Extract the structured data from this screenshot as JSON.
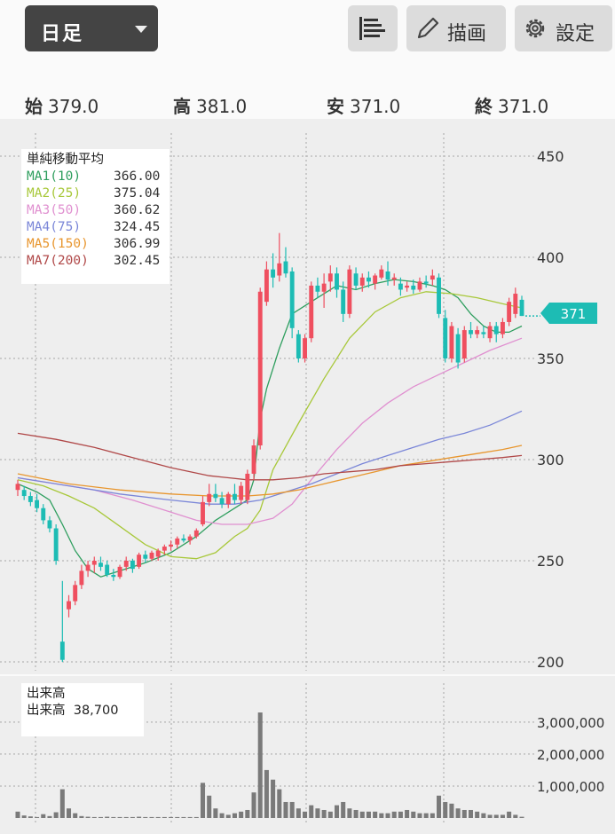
{
  "toolbar": {
    "period": "日足",
    "draw_label": "描画",
    "settings_label": "設定"
  },
  "ohlc": {
    "open_label": "始",
    "open": "379.0",
    "high_label": "高",
    "high": "381.0",
    "low_label": "安",
    "low": "371.0",
    "close_label": "終",
    "close": "371.0"
  },
  "legend": {
    "title": "単純移動平均",
    "items": [
      {
        "name": "MA1(10)",
        "value": "366.00",
        "color": "#2e9e5e"
      },
      {
        "name": "MA2(25)",
        "value": "375.04",
        "color": "#a8c83a"
      },
      {
        "name": "MA3(50)",
        "value": "360.62",
        "color": "#e090d0"
      },
      {
        "name": "MA4(75)",
        "value": "324.45",
        "color": "#7a86d8"
      },
      {
        "name": "MA5(150)",
        "value": "306.99",
        "color": "#e8962e"
      },
      {
        "name": "MA7(200)",
        "value": "302.45",
        "color": "#b04848"
      }
    ]
  },
  "volume_legend": {
    "title": "出来高",
    "label": "出来高",
    "value": "38,700"
  },
  "price_tag": "371",
  "colors": {
    "up": "#ef4f5f",
    "down": "#1dbcb4",
    "volume": "#7a7a7a"
  },
  "chart_data": {
    "type": "candlestick",
    "price_axis": {
      "ticks": [
        "450",
        "400",
        "350",
        "300",
        "250",
        "200"
      ],
      "ylim": [
        200,
        450
      ]
    },
    "volume_axis": {
      "ticks": [
        "3,000,000",
        "2,000,000",
        "1,000,000"
      ],
      "ylim": [
        0,
        3800000
      ]
    },
    "grid": true,
    "candles": [
      {
        "o": 285,
        "h": 290,
        "l": 282,
        "c": 288
      },
      {
        "o": 285,
        "h": 287,
        "l": 280,
        "c": 282
      },
      {
        "o": 282,
        "h": 284,
        "l": 277,
        "c": 279
      },
      {
        "o": 280,
        "h": 283,
        "l": 274,
        "c": 276
      },
      {
        "o": 276,
        "h": 278,
        "l": 268,
        "c": 270
      },
      {
        "o": 270,
        "h": 272,
        "l": 264,
        "c": 266
      },
      {
        "o": 266,
        "h": 268,
        "l": 248,
        "c": 250
      },
      {
        "o": 210,
        "h": 240,
        "l": 200,
        "c": 201
      },
      {
        "o": 226,
        "h": 233,
        "l": 222,
        "c": 230
      },
      {
        "o": 230,
        "h": 240,
        "l": 228,
        "c": 238
      },
      {
        "o": 238,
        "h": 248,
        "l": 236,
        "c": 245
      },
      {
        "o": 245,
        "h": 250,
        "l": 242,
        "c": 248
      },
      {
        "o": 248,
        "h": 252,
        "l": 244,
        "c": 250
      },
      {
        "o": 249,
        "h": 252,
        "l": 245,
        "c": 247
      },
      {
        "o": 248,
        "h": 250,
        "l": 242,
        "c": 243
      },
      {
        "o": 243,
        "h": 246,
        "l": 240,
        "c": 242
      },
      {
        "o": 242,
        "h": 248,
        "l": 241,
        "c": 247
      },
      {
        "o": 247,
        "h": 252,
        "l": 245,
        "c": 250
      },
      {
        "o": 250,
        "h": 251,
        "l": 244,
        "c": 246
      },
      {
        "o": 247,
        "h": 254,
        "l": 246,
        "c": 253
      },
      {
        "o": 253,
        "h": 255,
        "l": 249,
        "c": 251
      },
      {
        "o": 251,
        "h": 255,
        "l": 250,
        "c": 254
      },
      {
        "o": 252,
        "h": 256,
        "l": 250,
        "c": 255
      },
      {
        "o": 255,
        "h": 258,
        "l": 253,
        "c": 257
      },
      {
        "o": 257,
        "h": 260,
        "l": 255,
        "c": 258
      },
      {
        "o": 258,
        "h": 262,
        "l": 256,
        "c": 261
      },
      {
        "o": 261,
        "h": 263,
        "l": 259,
        "c": 260
      },
      {
        "o": 260,
        "h": 263,
        "l": 258,
        "c": 262
      },
      {
        "o": 262,
        "h": 266,
        "l": 261,
        "c": 265
      },
      {
        "o": 268,
        "h": 282,
        "l": 267,
        "c": 279
      },
      {
        "o": 279,
        "h": 288,
        "l": 277,
        "c": 283
      },
      {
        "o": 283,
        "h": 288,
        "l": 279,
        "c": 281
      },
      {
        "o": 281,
        "h": 284,
        "l": 276,
        "c": 278
      },
      {
        "o": 278,
        "h": 284,
        "l": 276,
        "c": 283
      },
      {
        "o": 283,
        "h": 288,
        "l": 278,
        "c": 280
      },
      {
        "o": 280,
        "h": 289,
        "l": 278,
        "c": 287
      },
      {
        "o": 280,
        "h": 295,
        "l": 278,
        "c": 293
      },
      {
        "o": 293,
        "h": 310,
        "l": 290,
        "c": 307
      },
      {
        "o": 307,
        "h": 385,
        "l": 305,
        "c": 383
      },
      {
        "o": 378,
        "h": 398,
        "l": 376,
        "c": 394
      },
      {
        "o": 394,
        "h": 402,
        "l": 385,
        "c": 390
      },
      {
        "o": 391,
        "h": 412,
        "l": 388,
        "c": 397
      },
      {
        "o": 398,
        "h": 405,
        "l": 390,
        "c": 392
      },
      {
        "o": 393,
        "h": 395,
        "l": 360,
        "c": 365
      },
      {
        "o": 362,
        "h": 364,
        "l": 348,
        "c": 350
      },
      {
        "o": 350,
        "h": 362,
        "l": 348,
        "c": 360
      },
      {
        "o": 360,
        "h": 388,
        "l": 358,
        "c": 386
      },
      {
        "o": 386,
        "h": 390,
        "l": 380,
        "c": 383
      },
      {
        "o": 383,
        "h": 392,
        "l": 375,
        "c": 387
      },
      {
        "o": 388,
        "h": 396,
        "l": 383,
        "c": 392
      },
      {
        "o": 392,
        "h": 395,
        "l": 380,
        "c": 384
      },
      {
        "o": 384,
        "h": 388,
        "l": 368,
        "c": 372
      },
      {
        "o": 372,
        "h": 396,
        "l": 370,
        "c": 394
      },
      {
        "o": 392,
        "h": 395,
        "l": 384,
        "c": 386
      },
      {
        "o": 386,
        "h": 392,
        "l": 383,
        "c": 390
      },
      {
        "o": 390,
        "h": 393,
        "l": 385,
        "c": 388
      },
      {
        "o": 387,
        "h": 392,
        "l": 384,
        "c": 391
      },
      {
        "o": 390,
        "h": 396,
        "l": 389,
        "c": 394
      },
      {
        "o": 393,
        "h": 398,
        "l": 386,
        "c": 389
      },
      {
        "o": 389,
        "h": 392,
        "l": 386,
        "c": 390
      },
      {
        "o": 387,
        "h": 390,
        "l": 381,
        "c": 384
      },
      {
        "o": 385,
        "h": 388,
        "l": 383,
        "c": 386
      },
      {
        "o": 386,
        "h": 389,
        "l": 382,
        "c": 384
      },
      {
        "o": 384,
        "h": 390,
        "l": 383,
        "c": 388
      },
      {
        "o": 388,
        "h": 391,
        "l": 385,
        "c": 387
      },
      {
        "o": 389,
        "h": 394,
        "l": 386,
        "c": 391
      },
      {
        "o": 390,
        "h": 392,
        "l": 370,
        "c": 372
      },
      {
        "o": 370,
        "h": 374,
        "l": 348,
        "c": 350
      },
      {
        "o": 350,
        "h": 368,
        "l": 348,
        "c": 366
      },
      {
        "o": 362,
        "h": 365,
        "l": 345,
        "c": 348
      },
      {
        "o": 350,
        "h": 366,
        "l": 348,
        "c": 364
      },
      {
        "o": 364,
        "h": 368,
        "l": 360,
        "c": 362
      },
      {
        "o": 362,
        "h": 366,
        "l": 360,
        "c": 364
      },
      {
        "o": 363,
        "h": 366,
        "l": 360,
        "c": 362
      },
      {
        "o": 360,
        "h": 368,
        "l": 358,
        "c": 366
      },
      {
        "o": 366,
        "h": 368,
        "l": 358,
        "c": 362
      },
      {
        "o": 362,
        "h": 370,
        "l": 360,
        "c": 368
      },
      {
        "o": 368,
        "h": 380,
        "l": 366,
        "c": 378
      },
      {
        "o": 372,
        "h": 385,
        "l": 370,
        "c": 382
      },
      {
        "o": 379,
        "h": 381,
        "l": 371,
        "c": 371
      }
    ],
    "volume": [
      200000,
      80000,
      50000,
      30000,
      120000,
      60000,
      180000,
      900000,
      300000,
      150000,
      60000,
      40000,
      30000,
      30000,
      40000,
      30000,
      30000,
      30000,
      30000,
      40000,
      30000,
      30000,
      30000,
      30000,
      30000,
      30000,
      30000,
      30000,
      30000,
      1100000,
      700000,
      300000,
      150000,
      100000,
      150000,
      200000,
      250000,
      800000,
      3300000,
      1500000,
      1200000,
      900000,
      500000,
      500000,
      300000,
      200000,
      400000,
      300000,
      250000,
      200000,
      400000,
      500000,
      300000,
      250000,
      200000,
      200000,
      200000,
      150000,
      150000,
      200000,
      200000,
      250000,
      200000,
      150000,
      150000,
      150000,
      700000,
      500000,
      450000,
      300000,
      250000,
      250000,
      200000,
      150000,
      100000,
      100000,
      100000,
      200000,
      100000,
      38700
    ],
    "moving_averages": [
      {
        "name": "MA1(10)",
        "points": [
          [
            0,
            288
          ],
          [
            3,
            284
          ],
          [
            5,
            280
          ],
          [
            7,
            268
          ],
          [
            9,
            255
          ],
          [
            11,
            246
          ],
          [
            13,
            242
          ],
          [
            16,
            245
          ],
          [
            20,
            249
          ],
          [
            24,
            254
          ],
          [
            28,
            262
          ],
          [
            31,
            270
          ],
          [
            34,
            276
          ],
          [
            36,
            280
          ],
          [
            37,
            290
          ],
          [
            38,
            320
          ],
          [
            39,
            335
          ],
          [
            41,
            355
          ],
          [
            43,
            372
          ],
          [
            45,
            376
          ],
          [
            47,
            380
          ],
          [
            50,
            386
          ],
          [
            53,
            384
          ],
          [
            56,
            387
          ],
          [
            59,
            389
          ],
          [
            62,
            388
          ],
          [
            65,
            386
          ],
          [
            67,
            384
          ],
          [
            69,
            380
          ],
          [
            71,
            372
          ],
          [
            73,
            366
          ],
          [
            75,
            363
          ],
          [
            77,
            363
          ],
          [
            79,
            366
          ]
        ]
      },
      {
        "name": "MA2(25)",
        "points": [
          [
            0,
            290
          ],
          [
            4,
            287
          ],
          [
            8,
            282
          ],
          [
            12,
            276
          ],
          [
            16,
            267
          ],
          [
            20,
            258
          ],
          [
            24,
            252
          ],
          [
            28,
            251
          ],
          [
            31,
            254
          ],
          [
            34,
            262
          ],
          [
            36,
            266
          ],
          [
            38,
            275
          ],
          [
            40,
            295
          ],
          [
            44,
            318
          ],
          [
            48,
            340
          ],
          [
            52,
            360
          ],
          [
            56,
            373
          ],
          [
            60,
            380
          ],
          [
            64,
            383
          ],
          [
            68,
            382
          ],
          [
            72,
            380
          ],
          [
            76,
            377
          ],
          [
            79,
            375
          ]
        ]
      },
      {
        "name": "MA3(50)",
        "points": [
          [
            0,
            291
          ],
          [
            6,
            288
          ],
          [
            12,
            285
          ],
          [
            18,
            280
          ],
          [
            24,
            274
          ],
          [
            28,
            270
          ],
          [
            32,
            268
          ],
          [
            36,
            268
          ],
          [
            40,
            271
          ],
          [
            43,
            278
          ],
          [
            46,
            290
          ],
          [
            50,
            305
          ],
          [
            54,
            318
          ],
          [
            58,
            328
          ],
          [
            62,
            336
          ],
          [
            66,
            342
          ],
          [
            70,
            348
          ],
          [
            74,
            354
          ],
          [
            79,
            360
          ]
        ]
      },
      {
        "name": "MA4(75)",
        "points": [
          [
            0,
            291
          ],
          [
            8,
            287
          ],
          [
            16,
            283
          ],
          [
            24,
            280
          ],
          [
            30,
            278
          ],
          [
            34,
            278
          ],
          [
            38,
            280
          ],
          [
            42,
            284
          ],
          [
            46,
            288
          ],
          [
            50,
            293
          ],
          [
            54,
            298
          ],
          [
            58,
            302
          ],
          [
            62,
            306
          ],
          [
            66,
            310
          ],
          [
            70,
            313
          ],
          [
            74,
            317
          ],
          [
            79,
            324
          ]
        ]
      },
      {
        "name": "MA5(150)",
        "points": [
          [
            0,
            293
          ],
          [
            8,
            288
          ],
          [
            16,
            285
          ],
          [
            24,
            283
          ],
          [
            30,
            282
          ],
          [
            36,
            282
          ],
          [
            40,
            283
          ],
          [
            44,
            285
          ],
          [
            48,
            288
          ],
          [
            52,
            291
          ],
          [
            56,
            294
          ],
          [
            60,
            297
          ],
          [
            64,
            299
          ],
          [
            68,
            301
          ],
          [
            72,
            303
          ],
          [
            76,
            305
          ],
          [
            79,
            307
          ]
        ]
      },
      {
        "name": "MA7(200)",
        "points": [
          [
            0,
            313
          ],
          [
            6,
            310
          ],
          [
            12,
            306
          ],
          [
            18,
            301
          ],
          [
            24,
            296
          ],
          [
            30,
            292
          ],
          [
            36,
            290
          ],
          [
            40,
            290
          ],
          [
            44,
            291
          ],
          [
            48,
            293
          ],
          [
            52,
            294
          ],
          [
            56,
            295
          ],
          [
            60,
            297
          ],
          [
            64,
            298
          ],
          [
            68,
            299
          ],
          [
            72,
            300
          ],
          [
            76,
            301
          ],
          [
            79,
            302
          ]
        ]
      }
    ]
  }
}
